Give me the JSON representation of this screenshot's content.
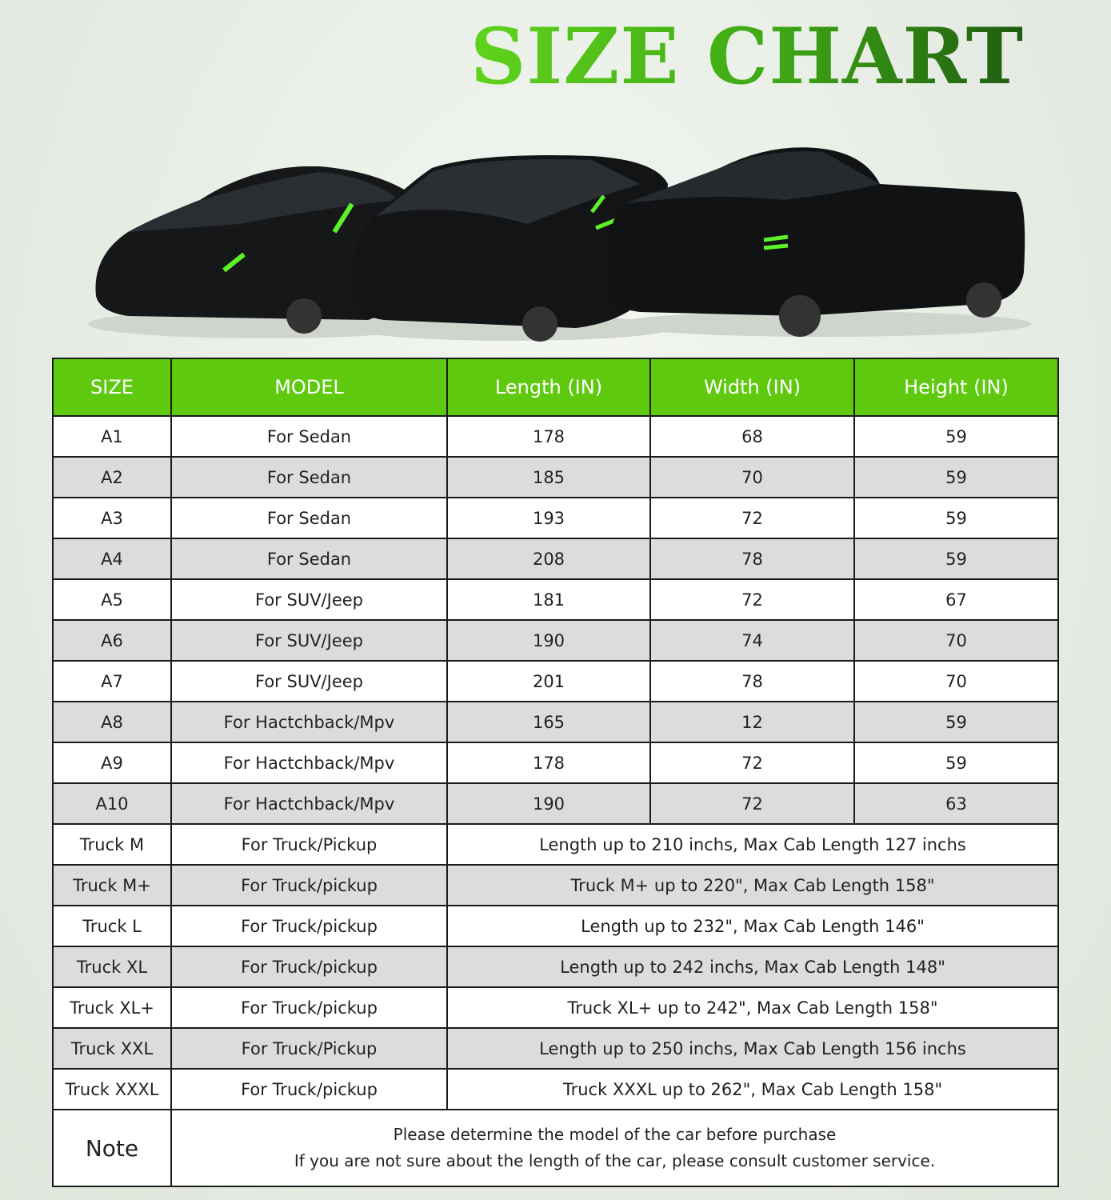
{
  "title": "SIZE CHART",
  "colors": {
    "header_bg": "#5ec90f",
    "title_green": "#4fc41a",
    "stripe": "#dcdcdc",
    "accent_reflective": "#5cf22a"
  },
  "images": [
    "sedan-car-cover",
    "suv-car-cover",
    "pickup-truck-cover"
  ],
  "table": {
    "headers": [
      "SIZE",
      "MODEL",
      "Length (IN)",
      "Width (IN)",
      "Height (IN)"
    ],
    "rows": [
      {
        "size": "A1",
        "model": "For Sedan",
        "length": "178",
        "width": "68",
        "height": "59"
      },
      {
        "size": "A2",
        "model": "For Sedan",
        "length": "185",
        "width": "70",
        "height": "59"
      },
      {
        "size": "A3",
        "model": "For Sedan",
        "length": "193",
        "width": "72",
        "height": "59"
      },
      {
        "size": "A4",
        "model": "For Sedan",
        "length": "208",
        "width": "78",
        "height": "59"
      },
      {
        "size": "A5",
        "model": "For SUV/Jeep",
        "length": "181",
        "width": "72",
        "height": "67"
      },
      {
        "size": "A6",
        "model": "For SUV/Jeep",
        "length": "190",
        "width": "74",
        "height": "70"
      },
      {
        "size": "A7",
        "model": "For SUV/Jeep",
        "length": "201",
        "width": "78",
        "height": "70"
      },
      {
        "size": "A8",
        "model": "For Hactchback/Mpv",
        "length": "165",
        "width": "12",
        "height": "59"
      },
      {
        "size": "A9",
        "model": "For Hactchback/Mpv",
        "length": "178",
        "width": "72",
        "height": "59"
      },
      {
        "size": "A10",
        "model": "For Hactchback/Mpv",
        "length": "190",
        "width": "72",
        "height": "63"
      }
    ],
    "truck_rows": [
      {
        "size": "Truck M",
        "model": "For Truck/Pickup",
        "desc": "Length up to 210 inchs, Max Cab Length 127 inchs"
      },
      {
        "size": "Truck M+",
        "model": "For Truck/pickup",
        "desc": "Truck M+ up to 220\", Max Cab Length 158\""
      },
      {
        "size": "Truck L",
        "model": "For Truck/pickup",
        "desc": "Length  up to 232\", Max Cab Length 146\""
      },
      {
        "size": "Truck XL",
        "model": "For Truck/pickup",
        "desc": "Length up to 242 inchs, Max Cab Length 148\""
      },
      {
        "size": "Truck XL+",
        "model": "For Truck/pickup",
        "desc": "Truck XL+ up to 242\", Max Cab Length 158\""
      },
      {
        "size": "Truck XXL",
        "model": "For Truck/Pickup",
        "desc": "Length up to 250 inchs, Max Cab Length 156 inchs"
      },
      {
        "size": "Truck XXXL",
        "model": "For Truck/pickup",
        "desc": "Truck XXXL up to 262\", Max Cab Length 158\""
      }
    ],
    "note": {
      "label": "Note",
      "line1": "Please determine the model of the car before purchase",
      "line2": "If you are not sure about the length of the car, please consult customer service."
    }
  }
}
